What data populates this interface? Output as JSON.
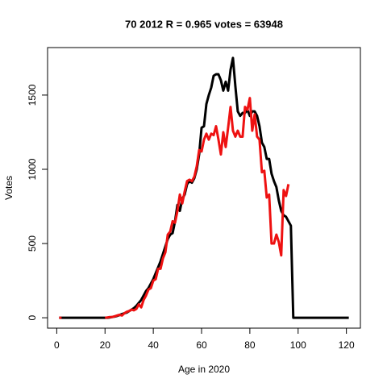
{
  "chart_data": {
    "type": "line",
    "title": "70 2012 R = 0.965 votes = 63948",
    "x_label": "Age in 2020",
    "y_label": "Votes",
    "x": [
      1,
      2,
      3,
      4,
      5,
      6,
      7,
      8,
      9,
      10,
      11,
      12,
      13,
      14,
      15,
      16,
      17,
      18,
      19,
      20,
      21,
      22,
      23,
      24,
      25,
      26,
      27,
      28,
      29,
      30,
      31,
      32,
      33,
      34,
      35,
      36,
      37,
      38,
      39,
      40,
      41,
      42,
      43,
      44,
      45,
      46,
      47,
      48,
      49,
      50,
      51,
      52,
      53,
      54,
      55,
      56,
      57,
      58,
      59,
      60,
      61,
      62,
      63,
      64,
      65,
      66,
      67,
      68,
      69,
      70,
      71,
      72,
      73,
      74,
      75,
      76,
      77,
      78,
      79,
      80,
      81,
      82,
      83,
      84,
      85,
      86,
      87,
      88,
      89,
      90,
      91,
      92,
      93,
      94,
      95,
      96,
      97,
      98,
      99,
      100,
      101,
      102,
      103,
      104,
      105,
      106,
      107,
      108,
      109,
      110,
      111,
      112,
      113,
      114,
      115,
      116,
      117,
      118,
      119,
      120,
      121
    ],
    "series": [
      {
        "color": "#000000",
        "values": [
          0,
          0,
          0,
          0,
          0,
          0,
          0,
          0,
          0,
          0,
          0,
          0,
          0,
          0,
          0,
          0,
          0,
          0,
          0,
          0,
          0,
          2,
          5,
          8,
          12,
          18,
          25,
          30,
          35,
          45,
          55,
          65,
          80,
          100,
          120,
          150,
          180,
          200,
          230,
          260,
          300,
          340,
          380,
          430,
          480,
          530,
          560,
          570,
          650,
          760,
          720,
          800,
          830,
          900,
          920,
          910,
          940,
          1000,
          1100,
          1280,
          1290,
          1440,
          1500,
          1550,
          1630,
          1640,
          1640,
          1600,
          1530,
          1590,
          1530,
          1670,
          1750,
          1560,
          1390,
          1360,
          1380,
          1380,
          1400,
          1360,
          1390,
          1390,
          1360,
          1290,
          1180,
          1150,
          1070,
          1070,
          970,
          920,
          880,
          790,
          720,
          690,
          680,
          650,
          620,
          0,
          0,
          0,
          0,
          0,
          0,
          0,
          0,
          0,
          0,
          0,
          0,
          0,
          0,
          0,
          0,
          0,
          0,
          0,
          0,
          0,
          0,
          0,
          0
        ]
      },
      {
        "color": "#ee1111",
        "values": [
          0,
          0,
          null,
          null,
          null,
          null,
          null,
          null,
          null,
          null,
          null,
          null,
          null,
          null,
          null,
          null,
          null,
          null,
          null,
          0,
          2,
          5,
          5,
          10,
          15,
          20,
          15,
          30,
          40,
          45,
          55,
          50,
          60,
          90,
          70,
          120,
          150,
          190,
          200,
          250,
          260,
          330,
          330,
          400,
          440,
          560,
          580,
          650,
          640,
          720,
          830,
          770,
          850,
          920,
          930,
          920,
          950,
          1020,
          1130,
          1120,
          1200,
          1240,
          1200,
          1240,
          1230,
          1290,
          1200,
          1100,
          1250,
          1150,
          1280,
          1420,
          1260,
          1220,
          1260,
          1220,
          1220,
          1420,
          1400,
          1480,
          1260,
          1370,
          1220,
          1200,
          980,
          990,
          810,
          830,
          500,
          500,
          560,
          510,
          420,
          860,
          820,
          900,
          null,
          null,
          null,
          null,
          null,
          null,
          null,
          null,
          null,
          null,
          null,
          null,
          null,
          null,
          null,
          null,
          null,
          null,
          null,
          null,
          null,
          null,
          null,
          null,
          null
        ]
      }
    ],
    "xlim": [
      -3.8,
      125.8
    ],
    "ylim": [
      -70,
      1820
    ],
    "xticks": [
      0,
      20,
      40,
      60,
      80,
      100,
      120
    ],
    "yticks": [
      0,
      500,
      1000,
      1500
    ]
  }
}
